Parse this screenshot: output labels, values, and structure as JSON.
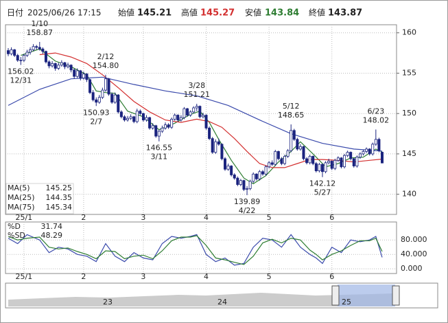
{
  "header": {
    "date_label": "日付",
    "datetime": "2025/06/26 17:15",
    "open_label": "始値",
    "open": 145.21,
    "high_label": "高値",
    "high": 145.27,
    "low_label": "安値",
    "low": 143.84,
    "close_label": "終値",
    "close": 143.87
  },
  "chart_data": [
    {
      "type": "candlestick",
      "up_color": "#ffffff",
      "down_color": "#1a237e",
      "ylim": [
        137.5,
        161
      ],
      "yticks": [
        140,
        145,
        150,
        155,
        160
      ],
      "grid": true,
      "xticks": [
        {
          "value": 5,
          "label": "25/1"
        },
        {
          "value": 24,
          "label": "2"
        },
        {
          "value": 43,
          "label": "3"
        },
        {
          "value": 63,
          "label": "4"
        },
        {
          "value": 83,
          "label": "5"
        },
        {
          "value": 103,
          "label": "6"
        }
      ],
      "candles": [
        [
          157.8,
          158.1,
          157.1,
          157.4
        ],
        [
          157.4,
          158.2,
          157.2,
          157.9
        ],
        [
          157.9,
          158.0,
          157.0,
          157.2
        ],
        [
          157.2,
          157.4,
          156.4,
          156.6
        ],
        [
          156.6,
          157.0,
          156.02,
          156.6
        ],
        [
          156.6,
          157.4,
          156.4,
          157.2
        ],
        [
          157.2,
          157.9,
          157.0,
          157.6
        ],
        [
          157.6,
          158.2,
          157.3,
          157.9
        ],
        [
          157.9,
          158.6,
          157.7,
          158.3
        ],
        [
          158.3,
          158.5,
          157.9,
          158.2
        ],
        [
          158.2,
          158.87,
          157.8,
          158.0
        ],
        [
          158.0,
          158.2,
          157.4,
          157.7
        ],
        [
          157.7,
          157.8,
          156.2,
          156.4
        ],
        [
          156.4,
          156.6,
          155.6,
          155.9
        ],
        [
          155.9,
          156.5,
          155.7,
          156.2
        ],
        [
          156.2,
          156.3,
          155.3,
          155.6
        ],
        [
          155.6,
          156.3,
          155.4,
          156.0
        ],
        [
          156.0,
          156.6,
          155.8,
          156.3
        ],
        [
          156.3,
          156.4,
          155.5,
          155.8
        ],
        [
          155.8,
          156.3,
          155.6,
          156.0
        ],
        [
          156.0,
          156.1,
          155.1,
          155.4
        ],
        [
          155.4,
          155.6,
          154.3,
          154.6
        ],
        [
          154.6,
          155.6,
          154.4,
          155.3
        ],
        [
          155.3,
          155.4,
          154.1,
          154.4
        ],
        [
          154.4,
          155.2,
          154.2,
          154.9
        ],
        [
          154.9,
          155.0,
          153.9,
          154.2
        ],
        [
          154.2,
          154.3,
          152.4,
          152.6
        ],
        [
          152.6,
          152.9,
          151.5,
          151.7
        ],
        [
          151.7,
          152.0,
          150.93,
          151.4
        ],
        [
          151.4,
          152.3,
          151.2,
          152.0
        ],
        [
          152.0,
          153.2,
          151.8,
          152.9
        ],
        [
          152.9,
          154.8,
          152.7,
          154.3
        ],
        [
          154.3,
          154.4,
          152.2,
          152.4
        ],
        [
          152.4,
          152.6,
          151.2,
          151.4
        ],
        [
          151.4,
          152.6,
          151.2,
          152.3
        ],
        [
          152.3,
          152.4,
          150.0,
          150.2
        ],
        [
          150.2,
          150.4,
          149.4,
          149.6
        ],
        [
          149.6,
          149.8,
          149.0,
          149.2
        ],
        [
          149.2,
          149.7,
          149.0,
          149.4
        ],
        [
          149.4,
          149.9,
          149.2,
          149.6
        ],
        [
          149.6,
          149.7,
          148.8,
          149.0
        ],
        [
          149.0,
          150.6,
          148.8,
          150.3
        ],
        [
          150.3,
          150.5,
          149.8,
          150.0
        ],
        [
          150.0,
          150.1,
          149.0,
          149.2
        ],
        [
          149.2,
          149.8,
          149.0,
          149.5
        ],
        [
          149.5,
          149.6,
          148.0,
          148.2
        ],
        [
          148.2,
          148.8,
          148.0,
          148.5
        ],
        [
          148.5,
          148.6,
          147.0,
          147.2
        ],
        [
          147.2,
          148.0,
          146.55,
          147.8
        ],
        [
          147.8,
          148.5,
          147.6,
          148.2
        ],
        [
          148.2,
          148.9,
          148.0,
          148.6
        ],
        [
          148.6,
          148.8,
          148.1,
          148.3
        ],
        [
          148.3,
          149.5,
          148.1,
          149.3
        ],
        [
          149.3,
          150.0,
          149.1,
          149.8
        ],
        [
          149.8,
          149.9,
          149.0,
          149.2
        ],
        [
          149.2,
          149.8,
          149.0,
          149.5
        ],
        [
          149.5,
          150.8,
          149.3,
          150.6
        ],
        [
          150.6,
          150.7,
          149.6,
          149.8
        ],
        [
          149.8,
          150.4,
          149.6,
          150.2
        ],
        [
          150.2,
          150.9,
          150.0,
          150.7
        ],
        [
          150.7,
          151.21,
          150.3,
          150.9
        ],
        [
          150.9,
          151.0,
          149.4,
          149.6
        ],
        [
          149.6,
          150.1,
          149.4,
          149.8
        ],
        [
          149.8,
          149.9,
          148.0,
          148.2
        ],
        [
          148.2,
          148.4,
          146.7,
          146.9
        ],
        [
          146.9,
          147.1,
          145.0,
          145.2
        ],
        [
          145.2,
          146.8,
          145.0,
          146.5
        ],
        [
          146.5,
          146.9,
          146.0,
          146.2
        ],
        [
          146.2,
          146.3,
          144.2,
          144.4
        ],
        [
          144.4,
          144.6,
          142.9,
          143.1
        ],
        [
          143.1,
          143.8,
          142.9,
          143.5
        ],
        [
          143.5,
          143.6,
          142.2,
          142.4
        ],
        [
          142.4,
          142.6,
          141.8,
          142.0
        ],
        [
          142.0,
          142.2,
          141.0,
          141.2
        ],
        [
          141.2,
          141.9,
          141.0,
          141.7
        ],
        [
          141.7,
          141.8,
          140.4,
          140.6
        ],
        [
          140.6,
          141.0,
          139.89,
          140.7
        ],
        [
          140.7,
          141.8,
          140.5,
          141.6
        ],
        [
          141.6,
          142.7,
          141.4,
          142.5
        ],
        [
          142.5,
          142.6,
          141.7,
          141.9
        ],
        [
          141.9,
          143.0,
          141.7,
          142.8
        ],
        [
          142.8,
          143.0,
          142.3,
          142.5
        ],
        [
          142.5,
          143.6,
          142.3,
          143.4
        ],
        [
          143.4,
          144.1,
          143.2,
          143.9
        ],
        [
          143.9,
          144.2,
          143.5,
          143.7
        ],
        [
          143.7,
          145.5,
          143.5,
          145.3
        ],
        [
          145.3,
          145.4,
          144.2,
          144.4
        ],
        [
          144.4,
          144.6,
          143.6,
          143.8
        ],
        [
          143.8,
          144.9,
          143.6,
          144.7
        ],
        [
          144.7,
          145.6,
          144.5,
          145.4
        ],
        [
          145.4,
          148.65,
          145.2,
          147.9
        ],
        [
          147.9,
          148.1,
          146.6,
          146.8
        ],
        [
          146.8,
          147.0,
          145.4,
          145.6
        ],
        [
          145.6,
          146.2,
          145.4,
          145.9
        ],
        [
          145.9,
          146.0,
          144.2,
          144.4
        ],
        [
          144.4,
          144.6,
          143.7,
          143.9
        ],
        [
          143.9,
          144.9,
          143.7,
          144.7
        ],
        [
          144.7,
          144.8,
          143.6,
          143.8
        ],
        [
          143.8,
          144.0,
          142.7,
          142.9
        ],
        [
          142.9,
          143.9,
          142.7,
          143.7
        ],
        [
          143.7,
          143.8,
          142.12,
          142.8
        ],
        [
          142.8,
          144.1,
          142.6,
          143.9
        ],
        [
          143.9,
          144.4,
          143.7,
          144.1
        ],
        [
          144.1,
          144.2,
          143.0,
          143.2
        ],
        [
          143.2,
          144.4,
          143.0,
          144.2
        ],
        [
          144.2,
          144.7,
          144.0,
          144.5
        ],
        [
          144.5,
          144.6,
          143.2,
          143.4
        ],
        [
          143.4,
          145.0,
          143.2,
          144.8
        ],
        [
          144.8,
          145.4,
          144.6,
          145.2
        ],
        [
          145.2,
          145.3,
          144.2,
          144.4
        ],
        [
          144.4,
          144.5,
          143.3,
          143.5
        ],
        [
          143.5,
          144.8,
          143.3,
          144.6
        ],
        [
          144.6,
          145.2,
          144.4,
          145.0
        ],
        [
          145.0,
          145.5,
          144.8,
          145.3
        ],
        [
          145.3,
          145.8,
          145.1,
          145.6
        ],
        [
          145.6,
          145.7,
          144.8,
          145.0
        ],
        [
          145.0,
          146.4,
          144.8,
          146.2
        ],
        [
          146.2,
          148.02,
          146.0,
          146.8
        ],
        [
          146.8,
          147.0,
          145.2,
          145.4
        ],
        [
          145.21,
          145.27,
          143.84,
          143.87
        ]
      ],
      "series": [
        {
          "name": "MA(5)",
          "color": "#2e7d32",
          "last": 145.25,
          "x": [
            4,
            10,
            15,
            20,
            25,
            28,
            31,
            34,
            38,
            43,
            48,
            53,
            58,
            61,
            64,
            67,
            71,
            75,
            78,
            82,
            86,
            90,
            93,
            97,
            101,
            105,
            109,
            113,
            117,
            119
          ],
          "values": [
            157.2,
            158.0,
            156.5,
            155.8,
            154.8,
            152.8,
            152.6,
            152.5,
            150.3,
            149.6,
            148.0,
            148.8,
            149.9,
            150.3,
            148.9,
            146.8,
            144.2,
            142.0,
            141.3,
            142.3,
            144.0,
            145.3,
            146.5,
            145.0,
            143.4,
            143.8,
            144.5,
            144.6,
            145.6,
            145.25
          ]
        },
        {
          "name": "MA(25)",
          "color": "#d32f2f",
          "last": 144.35,
          "x": [
            10,
            15,
            20,
            25,
            30,
            35,
            40,
            45,
            50,
            55,
            60,
            64,
            68,
            72,
            76,
            80,
            84,
            88,
            92,
            96,
            100,
            105,
            110,
            115,
            119
          ],
          "values": [
            157.3,
            157.5,
            157.0,
            156.2,
            154.8,
            153.2,
            151.5,
            150.2,
            149.2,
            148.9,
            149.3,
            149.0,
            148.3,
            146.9,
            145.3,
            143.8,
            143.3,
            143.3,
            143.8,
            144.3,
            144.3,
            144.2,
            144.0,
            144.2,
            144.35
          ]
        },
        {
          "name": "MA(75)",
          "color": "#3949ab",
          "last": 145.34,
          "x": [
            0,
            10,
            20,
            30,
            40,
            50,
            60,
            70,
            80,
            90,
            100,
            110,
            119
          ],
          "values": [
            151.0,
            153.0,
            154.3,
            154.5,
            153.6,
            152.8,
            152.2,
            151.0,
            149.2,
            147.5,
            146.3,
            145.6,
            145.34
          ]
        }
      ],
      "annotations": [
        {
          "x": 10,
          "label": "1/10",
          "value": 158.87
        },
        {
          "x": 4,
          "label": "12/31",
          "value": 156.02
        },
        {
          "x": 31,
          "label": "2/12",
          "value": 154.8,
          "value_label": "154.80"
        },
        {
          "x": 28,
          "label": "2/7",
          "value": 150.93
        },
        {
          "x": 60,
          "label": "3/28",
          "value": 151.21
        },
        {
          "x": 48,
          "label": "3/11",
          "value": 146.55
        },
        {
          "x": 76,
          "label": "4/22",
          "value": 139.89
        },
        {
          "x": 90,
          "label": "5/12",
          "value": 148.65
        },
        {
          "x": 100,
          "label": "5/27",
          "value": 142.12
        },
        {
          "x": 117,
          "label": "6/23",
          "value": 148.02
        }
      ]
    },
    {
      "type": "line",
      "ylim": [
        -13,
        130
      ],
      "yticks": [
        {
          "value": 80,
          "label": "80.000"
        },
        {
          "value": 40,
          "label": "40.000"
        },
        {
          "value": 0,
          "label": "0.000"
        }
      ],
      "series": [
        {
          "name": "%D",
          "color": "#3949ab",
          "last": 31.74,
          "x": [
            0,
            3,
            6,
            10,
            13,
            16,
            19,
            22,
            25,
            28,
            31,
            34,
            37,
            40,
            43,
            46,
            49,
            52,
            55,
            58,
            60,
            63,
            66,
            69,
            72,
            75,
            78,
            81,
            84,
            87,
            90,
            93,
            96,
            98,
            100,
            103,
            106,
            109,
            112,
            115,
            117,
            119
          ],
          "values": [
            85,
            70,
            95,
            80,
            45,
            60,
            55,
            40,
            35,
            20,
            70,
            35,
            20,
            45,
            30,
            25,
            70,
            90,
            85,
            90,
            95,
            40,
            20,
            30,
            10,
            15,
            60,
            85,
            80,
            60,
            95,
            60,
            40,
            30,
            15,
            60,
            45,
            80,
            75,
            80,
            90,
            31.74
          ]
        },
        {
          "name": "%SD",
          "color": "#2e7d32",
          "last": 48.29,
          "x": [
            0,
            3,
            6,
            10,
            13,
            16,
            19,
            22,
            25,
            28,
            31,
            34,
            37,
            40,
            43,
            46,
            49,
            52,
            55,
            58,
            60,
            63,
            66,
            69,
            72,
            75,
            78,
            81,
            84,
            87,
            90,
            93,
            96,
            98,
            100,
            103,
            106,
            109,
            112,
            115,
            117,
            119
          ],
          "values": [
            90,
            80,
            85,
            88,
            60,
            55,
            58,
            48,
            40,
            28,
            50,
            48,
            28,
            35,
            38,
            28,
            50,
            78,
            88,
            88,
            92,
            65,
            30,
            25,
            18,
            12,
            35,
            72,
            82,
            72,
            85,
            80,
            52,
            40,
            25,
            40,
            50,
            65,
            78,
            78,
            85,
            48.29
          ]
        }
      ]
    }
  ],
  "navigator": {
    "labels": [
      "23",
      "24",
      "25"
    ]
  }
}
